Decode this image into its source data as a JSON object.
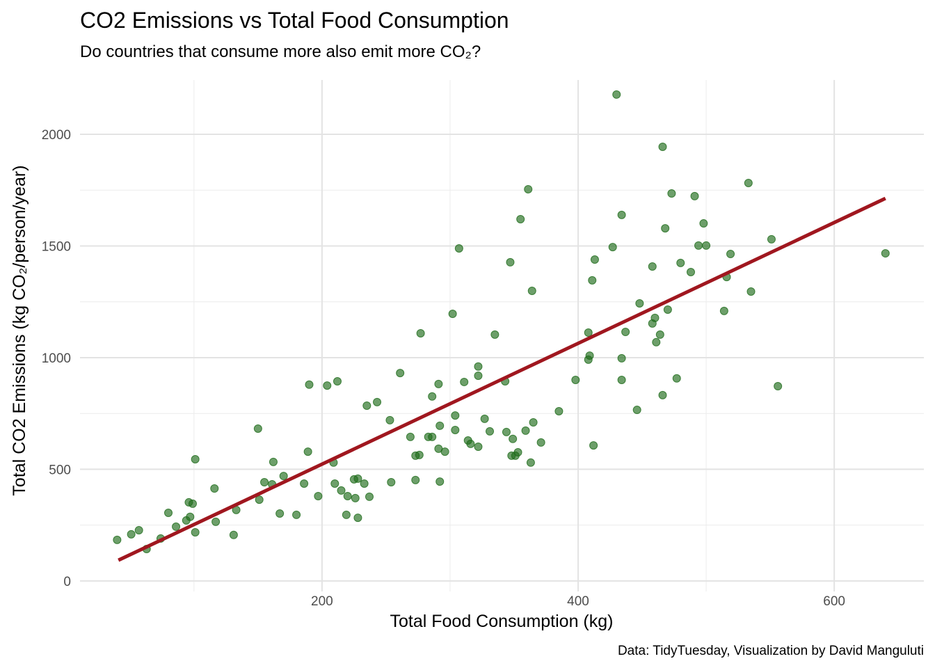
{
  "chart_data": {
    "type": "scatter",
    "title": "CO2 Emissions vs Total Food Consumption",
    "subtitle": "Do countries that consume more also emit more CO₂?",
    "x_label": "Total Food Consumption (kg)",
    "y_label": "Total CO2 Emissions (kg CO₂/person/year)",
    "caption": "Data: TidyTuesday, Visualization by David Manguluti",
    "x": [
      40,
      51,
      57,
      63,
      74,
      80,
      86,
      94,
      96,
      97,
      99,
      101,
      101,
      116,
      117,
      131,
      133,
      150,
      151,
      155,
      161,
      162,
      167,
      170,
      180,
      186,
      189,
      190,
      197,
      204,
      209,
      210,
      212,
      215,
      219,
      220,
      226,
      225,
      228,
      228,
      233,
      235,
      237,
      243,
      253,
      254,
      261,
      269,
      273,
      273,
      276,
      277,
      283,
      286,
      286,
      291,
      291,
      292,
      292,
      296,
      302,
      304,
      304,
      307,
      311,
      314,
      316,
      322,
      322,
      322,
      327,
      331,
      335,
      343,
      344,
      347,
      349,
      348,
      351,
      353,
      355,
      359,
      361,
      363,
      364,
      365,
      371,
      385,
      398,
      408,
      409,
      408,
      411,
      412,
      413,
      427,
      430,
      434,
      434,
      434,
      437,
      446,
      448,
      458,
      458,
      460,
      461,
      464,
      466,
      466,
      468,
      470,
      473,
      477,
      480,
      488,
      491,
      494,
      498,
      500,
      514,
      516,
      519,
      533,
      535,
      551,
      556,
      640
    ],
    "values": [
      184,
      209,
      227,
      143,
      190,
      305,
      243,
      271,
      352,
      287,
      346,
      545,
      218,
      414,
      265,
      206,
      318,
      682,
      364,
      442,
      433,
      533,
      302,
      470,
      296,
      436,
      579,
      879,
      380,
      875,
      530,
      436,
      894,
      405,
      296,
      380,
      371,
      455,
      458,
      283,
      436,
      785,
      377,
      801,
      720,
      442,
      931,
      645,
      452,
      561,
      564,
      1109,
      645,
      645,
      826,
      592,
      882,
      695,
      445,
      579,
      1196,
      676,
      741,
      1489,
      891,
      629,
      614,
      960,
      919,
      601,
      726,
      670,
      1103,
      894,
      667,
      1427,
      636,
      561,
      561,
      576,
      1620,
      673,
      1754,
      530,
      1299,
      710,
      620,
      760,
      900,
      1112,
      1009,
      991,
      1346,
      607,
      1439,
      1495,
      2178,
      1639,
      997,
      900,
      1115,
      766,
      1243,
      1408,
      1153,
      1178,
      1069,
      1103,
      1944,
      832,
      1579,
      1215,
      1735,
      907,
      1424,
      1383,
      1723,
      1502,
      1601,
      1502,
      1209,
      1361,
      1464,
      1782,
      1296,
      1530,
      872,
      1467
    ],
    "color": "#1e6b1a",
    "trend_line": {
      "x": [
        41,
        640
      ],
      "values": [
        93,
        1713
      ],
      "color": "#a0171f"
    },
    "xlim": [
      11,
      670
    ],
    "ylim": [
      -47,
      2243
    ],
    "xticks": [
      200,
      400,
      600
    ],
    "yticks": [
      0,
      500,
      1000,
      1500,
      2000
    ],
    "x_minor_ticks": [
      100,
      300,
      500
    ],
    "y_minor_ticks": [
      250,
      750,
      1250,
      1750
    ],
    "grid": true
  }
}
